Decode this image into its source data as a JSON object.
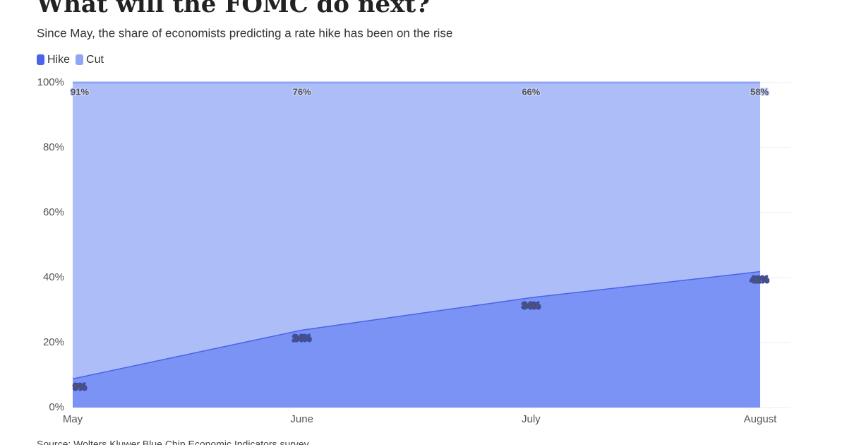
{
  "chart_data": {
    "type": "stacked_area",
    "title": "What will the FOMC do next?",
    "subtitle": "Since May, the share of economists predicting a rate hike has been on the rise",
    "source": "Source: Wolters Kluwer Blue Chip Economic Indicators survey",
    "categories": [
      "May",
      "June",
      "July",
      "August"
    ],
    "series": [
      {
        "name": "Hike",
        "color": "#4a63e8",
        "values": [
          9,
          24,
          34,
          42
        ],
        "value_labels": [
          "9%",
          "24%",
          "34%",
          "42%"
        ]
      },
      {
        "name": "Cut",
        "color": "#8fa6f5",
        "values": [
          91,
          76,
          66,
          58
        ],
        "value_labels": [
          "91%",
          "76%",
          "66%",
          "58%"
        ]
      }
    ],
    "ylim": [
      0,
      100
    ],
    "yticks": [
      {
        "value": 0,
        "label": "0%"
      },
      {
        "value": 20,
        "label": "20%"
      },
      {
        "value": 40,
        "label": "40%"
      },
      {
        "value": 60,
        "label": "60%"
      },
      {
        "value": 80,
        "label": "80%"
      },
      {
        "value": 100,
        "label": "100%"
      }
    ],
    "grid": true,
    "legend": "top-left"
  }
}
